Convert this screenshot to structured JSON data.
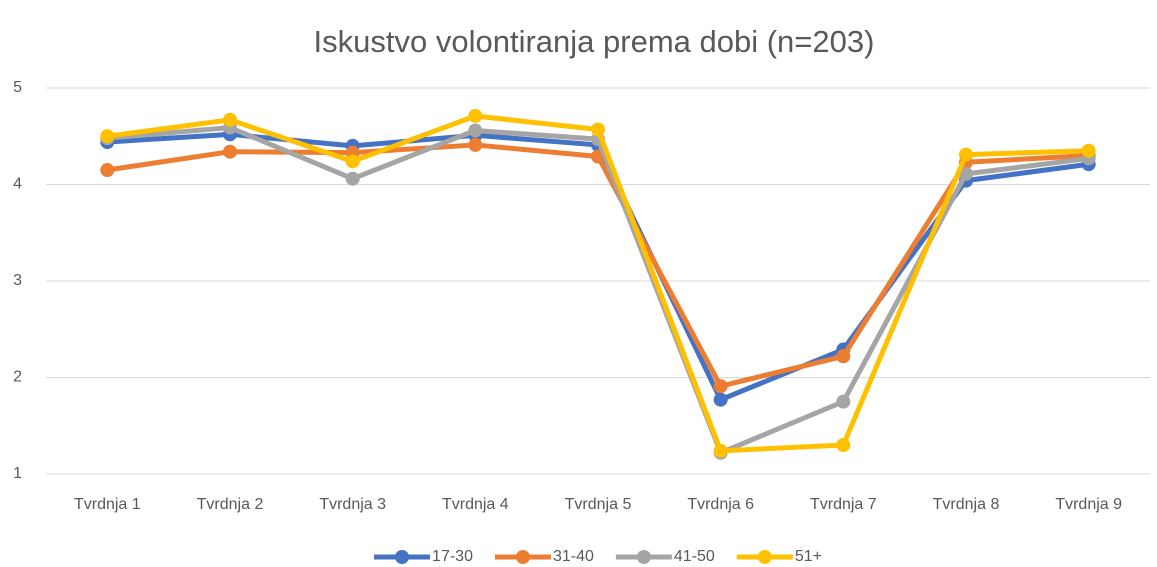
{
  "chart_data": {
    "type": "line",
    "title": "Iskustvo volontiranja prema dobi (n=203)",
    "categories": [
      "Tvrdnja 1",
      "Tvrdnja 2",
      "Tvrdnja 3",
      "Tvrdnja 4",
      "Tvrdnja 5",
      "Tvrdnja 6",
      "Tvrdnja 7",
      "Tvrdnja 8",
      "Tvrdnja 9"
    ],
    "series": [
      {
        "name": "17-30",
        "color": "#4472c4",
        "values": [
          4.44,
          4.52,
          4.4,
          4.51,
          4.41,
          1.77,
          2.29,
          4.04,
          4.21
        ]
      },
      {
        "name": "31-40",
        "color": "#ed7d31",
        "values": [
          4.15,
          4.34,
          4.33,
          4.41,
          4.29,
          1.91,
          2.22,
          4.23,
          4.3
        ]
      },
      {
        "name": "41-50",
        "color": "#a5a5a5",
        "values": [
          4.48,
          4.59,
          4.06,
          4.56,
          4.47,
          1.22,
          1.75,
          4.11,
          4.27
        ]
      },
      {
        "name": "51+",
        "color": "#ffc000",
        "values": [
          4.5,
          4.67,
          4.24,
          4.71,
          4.57,
          1.24,
          1.3,
          4.31,
          4.35
        ]
      }
    ],
    "ylim": [
      1,
      5
    ],
    "yticks": [
      1,
      2,
      3,
      4,
      5
    ],
    "grid": true,
    "legend": "bottom"
  }
}
